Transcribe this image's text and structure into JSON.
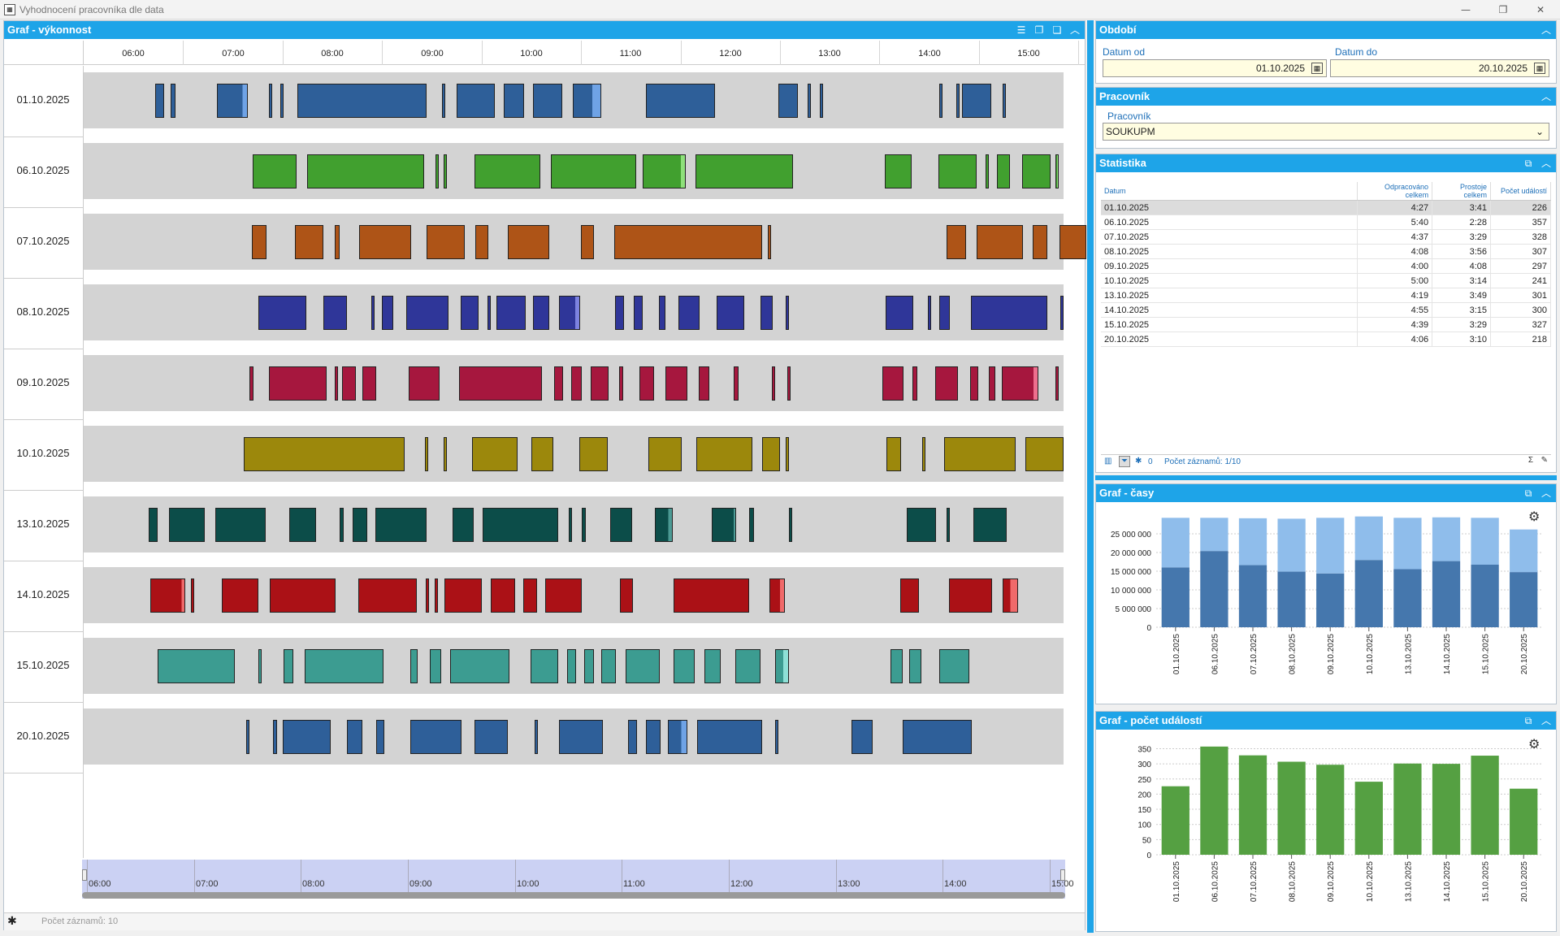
{
  "window": {
    "title": "Vyhodnocení pracovníka dle data",
    "min_icon": "minimize-icon",
    "max_icon": "maximize-icon",
    "close_icon": "close-icon"
  },
  "gantt": {
    "title": "Graf - výkonnost",
    "hours": [
      "06:00",
      "07:00",
      "08:00",
      "09:00",
      "10:00",
      "11:00",
      "12:00",
      "13:00",
      "14:00",
      "15:00"
    ],
    "scroll_hours": [
      "06:00",
      "07:00",
      "08:00",
      "09:00",
      "10:00",
      "11:00",
      "12:00",
      "13:00",
      "14:00",
      "15:00"
    ],
    "status_count": "Počet záznamů: 10",
    "rows": [
      {
        "date": "01.10.2025",
        "color": "#2e5f99",
        "hi": "#6fa3e6",
        "segs": [
          [
            6.22,
            6.31
          ],
          [
            6.37,
            6.42
          ],
          [
            6.84,
            7.15,
            0.15
          ],
          [
            7.36,
            7.39
          ],
          [
            7.48,
            7.5
          ],
          [
            7.65,
            8.95
          ],
          [
            9.1,
            9.12
          ],
          [
            9.25,
            9.63
          ],
          [
            9.72,
            9.93
          ],
          [
            10.02,
            10.31
          ],
          [
            10.42,
            10.7,
            0.3
          ],
          [
            11.15,
            11.85
          ],
          [
            12.48,
            12.68
          ],
          [
            12.78,
            12.8
          ],
          [
            12.9,
            12.92
          ],
          [
            14.1,
            14.12
          ],
          [
            14.27,
            14.3
          ],
          [
            14.33,
            14.62
          ],
          [
            14.74,
            14.77
          ]
        ]
      },
      {
        "date": "06.10.2025",
        "color": "#41a02f",
        "hi": "#8ee07a",
        "segs": [
          [
            7.2,
            7.64
          ],
          [
            7.75,
            8.92
          ],
          [
            9.04,
            9.07
          ],
          [
            9.12,
            9.15
          ],
          [
            9.43,
            10.09
          ],
          [
            10.2,
            11.05
          ],
          [
            11.12,
            11.55,
            0.1
          ],
          [
            11.65,
            12.63
          ],
          [
            13.55,
            13.82
          ],
          [
            14.09,
            14.48
          ],
          [
            14.57,
            14.6
          ],
          [
            14.68,
            14.81
          ],
          [
            14.93,
            15.22
          ],
          [
            15.27,
            15.3,
            0.5
          ]
        ]
      },
      {
        "date": "07.10.2025",
        "color": "#ae5417",
        "hi": "#e08040",
        "segs": [
          [
            7.19,
            7.34
          ],
          [
            7.62,
            7.91
          ],
          [
            8.02,
            8.07
          ],
          [
            8.27,
            8.79
          ],
          [
            8.95,
            9.33
          ],
          [
            9.44,
            9.57
          ],
          [
            9.76,
            10.18
          ],
          [
            10.5,
            10.63
          ],
          [
            10.83,
            12.32
          ],
          [
            12.38,
            12.41
          ],
          [
            14.17,
            14.37
          ],
          [
            14.48,
            14.94
          ],
          [
            15.04,
            15.19
          ],
          [
            15.31,
            15.58
          ]
        ]
      },
      {
        "date": "08.10.2025",
        "color": "#2f3699",
        "hi": "#7c82e0",
        "segs": [
          [
            7.26,
            7.74
          ],
          [
            7.91,
            8.15
          ],
          [
            8.39,
            8.42
          ],
          [
            8.5,
            8.61
          ],
          [
            8.74,
            9.17
          ],
          [
            9.29,
            9.47
          ],
          [
            9.56,
            9.59
          ],
          [
            9.65,
            9.94
          ],
          [
            10.02,
            10.18
          ],
          [
            10.28,
            10.49,
            0.2
          ],
          [
            10.84,
            10.93
          ],
          [
            11.03,
            11.12
          ],
          [
            11.28,
            11.35
          ],
          [
            11.48,
            11.69
          ],
          [
            11.86,
            12.14
          ],
          [
            12.3,
            12.43
          ],
          [
            12.56,
            12.59
          ],
          [
            13.56,
            13.84
          ],
          [
            13.99,
            14.02
          ],
          [
            14.1,
            14.21
          ],
          [
            14.42,
            15.19
          ],
          [
            15.32,
            15.35
          ]
        ]
      },
      {
        "date": "09.10.2025",
        "color": "#a6173e",
        "hi": "#ee6f8e",
        "segs": [
          [
            7.17,
            7.21
          ],
          [
            7.36,
            7.94
          ],
          [
            8.02,
            8.05
          ],
          [
            8.1,
            8.24
          ],
          [
            8.3,
            8.44
          ],
          [
            8.77,
            9.08
          ],
          [
            9.27,
            10.11
          ],
          [
            10.23,
            10.32
          ],
          [
            10.4,
            10.51
          ],
          [
            10.6,
            10.78
          ],
          [
            10.88,
            10.92
          ],
          [
            11.09,
            11.23
          ],
          [
            11.35,
            11.57
          ],
          [
            11.68,
            11.79
          ],
          [
            12.03,
            12.08
          ],
          [
            12.42,
            12.44
          ],
          [
            12.57,
            12.6
          ],
          [
            13.53,
            13.74
          ],
          [
            13.83,
            13.88
          ],
          [
            14.06,
            14.29
          ],
          [
            14.41,
            14.49
          ],
          [
            14.6,
            14.66
          ],
          [
            14.73,
            15.1,
            0.12
          ],
          [
            15.27,
            15.29
          ]
        ]
      },
      {
        "date": "10.10.2025",
        "color": "#9c880c",
        "hi": "#d4c050",
        "segs": [
          [
            7.11,
            8.73
          ],
          [
            8.93,
            8.96
          ],
          [
            9.12,
            9.15
          ],
          [
            9.4,
            9.86
          ],
          [
            10.0,
            10.22
          ],
          [
            10.48,
            10.77
          ],
          [
            11.18,
            11.51
          ],
          [
            11.66,
            12.22
          ],
          [
            12.32,
            12.5
          ],
          [
            12.56,
            12.59
          ],
          [
            13.57,
            13.72
          ],
          [
            13.93,
            13.96
          ],
          [
            14.15,
            14.87
          ],
          [
            14.97,
            15.35
          ]
        ]
      },
      {
        "date": "13.10.2025",
        "color": "#0c4d49",
        "hi": "#4c9a94",
        "segs": [
          [
            6.15,
            6.24
          ],
          [
            6.36,
            6.72
          ],
          [
            6.82,
            7.33
          ],
          [
            7.57,
            7.84
          ],
          [
            8.07,
            8.11
          ],
          [
            8.2,
            8.35
          ],
          [
            8.43,
            8.95
          ],
          [
            9.21,
            9.42
          ],
          [
            9.51,
            10.27
          ],
          [
            10.38,
            10.41
          ],
          [
            10.51,
            10.55
          ],
          [
            10.79,
            11.01
          ],
          [
            11.24,
            11.42,
            0.22
          ],
          [
            11.81,
            12.06,
            0.08
          ],
          [
            12.19,
            12.24
          ],
          [
            12.59,
            12.61
          ],
          [
            13.77,
            14.07
          ],
          [
            14.17,
            14.2
          ],
          [
            14.44,
            14.78
          ]
        ]
      },
      {
        "date": "14.10.2025",
        "color": "#ab1116",
        "hi": "#f06a6a",
        "segs": [
          [
            6.17,
            6.52,
            0.08
          ],
          [
            6.58,
            6.61
          ],
          [
            6.89,
            7.26
          ],
          [
            7.37,
            8.03
          ],
          [
            8.26,
            8.85
          ],
          [
            8.94,
            8.97
          ],
          [
            9.03,
            9.06
          ],
          [
            9.13,
            9.5
          ],
          [
            9.59,
            9.84
          ],
          [
            9.92,
            10.06
          ],
          [
            10.14,
            10.51
          ],
          [
            10.89,
            11.02
          ],
          [
            11.43,
            12.19
          ],
          [
            12.39,
            12.55,
            0.3
          ],
          [
            13.71,
            13.9
          ],
          [
            14.2,
            14.63
          ],
          [
            14.74,
            14.89,
            0.5
          ]
        ]
      },
      {
        "date": "15.10.2025",
        "color": "#3c9c91",
        "hi": "#8ee0d6",
        "segs": [
          [
            6.24,
            7.02
          ],
          [
            7.26,
            7.28
          ],
          [
            7.51,
            7.61
          ],
          [
            7.72,
            8.51
          ],
          [
            8.78,
            8.86
          ],
          [
            8.98,
            9.09
          ],
          [
            9.18,
            9.78
          ],
          [
            9.99,
            10.27
          ],
          [
            10.36,
            10.45
          ],
          [
            10.53,
            10.63
          ],
          [
            10.7,
            10.85
          ],
          [
            10.95,
            11.29
          ],
          [
            11.43,
            11.64
          ],
          [
            11.74,
            11.9
          ],
          [
            12.05,
            12.3
          ],
          [
            12.45,
            12.59,
            0.4
          ],
          [
            13.61,
            13.73
          ],
          [
            13.8,
            13.92
          ],
          [
            14.1,
            14.4
          ]
        ]
      },
      {
        "date": "20.10.2025",
        "color": "#2e5f99",
        "hi": "#6fa3e6",
        "segs": [
          [
            7.13,
            7.16
          ],
          [
            7.4,
            7.44
          ],
          [
            7.5,
            7.98
          ],
          [
            8.15,
            8.3
          ],
          [
            8.44,
            8.52
          ],
          [
            8.78,
            9.3
          ],
          [
            9.43,
            9.76
          ],
          [
            10.03,
            10.06
          ],
          [
            10.28,
            10.72
          ],
          [
            10.97,
            11.06
          ],
          [
            11.15,
            11.3
          ],
          [
            11.37,
            11.57,
            0.3
          ],
          [
            11.67,
            12.32
          ],
          [
            12.45,
            12.48
          ],
          [
            13.22,
            13.43
          ],
          [
            13.73,
            14.43
          ]
        ]
      }
    ]
  },
  "period": {
    "title": "Období",
    "date_from_label": "Datum od",
    "date_from": "01.10.2025",
    "date_to_label": "Datum do",
    "date_to": "20.10.2025"
  },
  "worker": {
    "title": "Pracovník",
    "label": "Pracovník",
    "value": "SOUKUPM"
  },
  "stats": {
    "title": "Statistika",
    "columns": [
      "Datum",
      "Odpracováno celkem",
      "Prostoje celkem",
      "Počet událostí"
    ],
    "rows": [
      [
        "01.10.2025",
        "4:27",
        "3:41",
        "226"
      ],
      [
        "06.10.2025",
        "5:40",
        "2:28",
        "357"
      ],
      [
        "07.10.2025",
        "4:37",
        "3:29",
        "328"
      ],
      [
        "08.10.2025",
        "4:08",
        "3:56",
        "307"
      ],
      [
        "09.10.2025",
        "4:00",
        "4:08",
        "297"
      ],
      [
        "10.10.2025",
        "5:00",
        "3:14",
        "241"
      ],
      [
        "13.10.2025",
        "4:19",
        "3:49",
        "301"
      ],
      [
        "14.10.2025",
        "4:55",
        "3:15",
        "300"
      ],
      [
        "15.10.2025",
        "4:39",
        "3:29",
        "327"
      ],
      [
        "20.10.2025",
        "4:06",
        "3:10",
        "218"
      ]
    ],
    "filter_count": "0",
    "record_count": "Počet záznamů: 1/10"
  },
  "chart_data": [
    {
      "type": "bar",
      "stacked": true,
      "title": "Graf - časy",
      "categories": [
        "01.10.2025",
        "06.10.2025",
        "07.10.2025",
        "08.10.2025",
        "09.10.2025",
        "10.10.2025",
        "13.10.2025",
        "14.10.2025",
        "15.10.2025",
        "20.10.2025"
      ],
      "ylim": [
        0,
        30000000
      ],
      "yticks": [
        0,
        5000000,
        10000000,
        15000000,
        20000000,
        25000000
      ],
      "ytick_labels": [
        "0",
        "5 000 000",
        "10 000 000",
        "15 000 000",
        "20 000 000",
        "25 000 000"
      ],
      "grid": true,
      "series": [
        {
          "color": "#4577ad",
          "values": [
            16020000,
            20400000,
            16620000,
            14880000,
            14400000,
            18000000,
            15540000,
            17700000,
            16740000,
            14760000
          ]
        },
        {
          "color": "#8fbdeb",
          "values": [
            13260000,
            8880000,
            12540000,
            14160000,
            14880000,
            11640000,
            13740000,
            11700000,
            12540000,
            11400000
          ]
        }
      ]
    },
    {
      "type": "bar",
      "title": "Graf - počet událostí",
      "categories": [
        "01.10.2025",
        "06.10.2025",
        "07.10.2025",
        "08.10.2025",
        "09.10.2025",
        "10.10.2025",
        "13.10.2025",
        "14.10.2025",
        "15.10.2025",
        "20.10.2025"
      ],
      "values": [
        226,
        357,
        328,
        307,
        297,
        241,
        301,
        300,
        327,
        218
      ],
      "ylim": [
        0,
        370
      ],
      "yticks": [
        0,
        50,
        100,
        150,
        200,
        250,
        300,
        350
      ],
      "grid": true,
      "color": "#55a042"
    }
  ]
}
